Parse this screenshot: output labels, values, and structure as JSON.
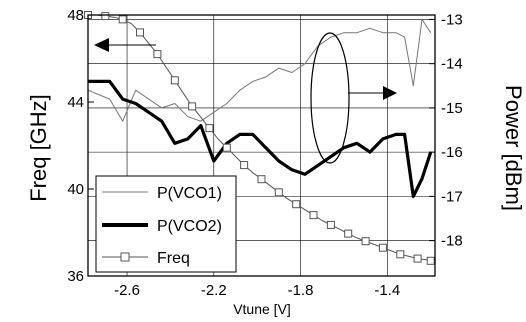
{
  "chart_data": {
    "type": "line",
    "xlabel": "Vtune [V]",
    "ylabel_left": "Freq [GHz]",
    "ylabel_right": "Power [dBm]",
    "xlim": [
      -2.78,
      -1.18
    ],
    "x_ticks": [
      -2.6,
      -2.2,
      -1.8,
      -1.4
    ],
    "x_tick_labels": [
      "-2.6",
      "-2.2",
      "-1.8",
      "-1.4"
    ],
    "ylim_left": [
      36,
      48
    ],
    "y_ticks_left": [
      36,
      40,
      44,
      48
    ],
    "y_tick_labels_left": [
      "36",
      "40",
      "44",
      "48"
    ],
    "ylim_right": [
      -18.8,
      -12.9
    ],
    "y_ticks_right": [
      -18,
      -17,
      -16,
      -15,
      -14,
      -13
    ],
    "y_tick_labels_right": [
      "-18",
      "-17",
      "-16",
      "-15",
      "-14",
      "-13"
    ],
    "grid": true,
    "legend_position": "bottom-left",
    "series": [
      {
        "name": "P(VCO1)",
        "axis": "right",
        "color": "#777777",
        "style": "thin",
        "x": [
          -2.78,
          -2.68,
          -2.62,
          -2.56,
          -2.5,
          -2.44,
          -2.38,
          -2.32,
          -2.26,
          -2.2,
          -2.14,
          -2.08,
          -2.02,
          -1.96,
          -1.9,
          -1.84,
          -1.78,
          -1.72,
          -1.66,
          -1.6,
          -1.54,
          -1.48,
          -1.42,
          -1.36,
          -1.32,
          -1.28,
          -1.24,
          -1.2
        ],
        "values": [
          -14.6,
          -14.8,
          -15.3,
          -14.6,
          -14.8,
          -15.0,
          -14.9,
          -15.2,
          -15.3,
          -15.1,
          -14.9,
          -14.6,
          -14.4,
          -14.3,
          -14.1,
          -14.2,
          -14.0,
          -13.6,
          -13.4,
          -13.3,
          -13.3,
          -13.2,
          -13.3,
          -13.3,
          -13.4,
          -14.5,
          -13.0,
          -13.3
        ]
      },
      {
        "name": "P(VCO2)",
        "axis": "right",
        "color": "#000000",
        "style": "thick",
        "x": [
          -2.78,
          -2.68,
          -2.62,
          -2.56,
          -2.5,
          -2.44,
          -2.38,
          -2.32,
          -2.26,
          -2.2,
          -2.14,
          -2.08,
          -2.02,
          -1.96,
          -1.9,
          -1.84,
          -1.78,
          -1.72,
          -1.66,
          -1.6,
          -1.54,
          -1.48,
          -1.42,
          -1.36,
          -1.32,
          -1.28,
          -1.24,
          -1.2
        ],
        "values": [
          -14.4,
          -14.4,
          -14.8,
          -14.9,
          -15.1,
          -15.3,
          -15.8,
          -15.7,
          -15.4,
          -16.2,
          -15.8,
          -15.6,
          -15.6,
          -15.9,
          -16.2,
          -16.4,
          -16.5,
          -16.3,
          -16.1,
          -15.9,
          -15.8,
          -16.0,
          -15.7,
          -15.6,
          -15.6,
          -17.0,
          -16.6,
          -16.0
        ]
      },
      {
        "name": "Freq",
        "axis": "left",
        "color": "#555555",
        "style": "square-markers",
        "x": [
          -2.78,
          -2.74,
          -2.7,
          -2.66,
          -2.62,
          -2.58,
          -2.54,
          -2.5,
          -2.46,
          -2.42,
          -2.38,
          -2.34,
          -2.3,
          -2.26,
          -2.22,
          -2.18,
          -2.14,
          -2.1,
          -2.06,
          -2.02,
          -1.98,
          -1.94,
          -1.9,
          -1.86,
          -1.82,
          -1.78,
          -1.74,
          -1.7,
          -1.66,
          -1.62,
          -1.58,
          -1.54,
          -1.5,
          -1.46,
          -1.42,
          -1.38,
          -1.34,
          -1.3,
          -1.26,
          -1.22,
          -1.2
        ],
        "values": [
          48.0,
          48.0,
          47.95,
          47.9,
          47.8,
          47.6,
          47.2,
          46.7,
          46.2,
          45.6,
          45.0,
          44.4,
          43.8,
          43.3,
          42.8,
          42.3,
          41.9,
          41.5,
          41.1,
          40.75,
          40.45,
          40.15,
          39.85,
          39.55,
          39.3,
          39.05,
          38.8,
          38.55,
          38.35,
          38.15,
          37.95,
          37.75,
          37.6,
          37.45,
          37.3,
          37.15,
          37.0,
          36.9,
          36.8,
          36.75,
          36.7
        ]
      }
    ]
  }
}
